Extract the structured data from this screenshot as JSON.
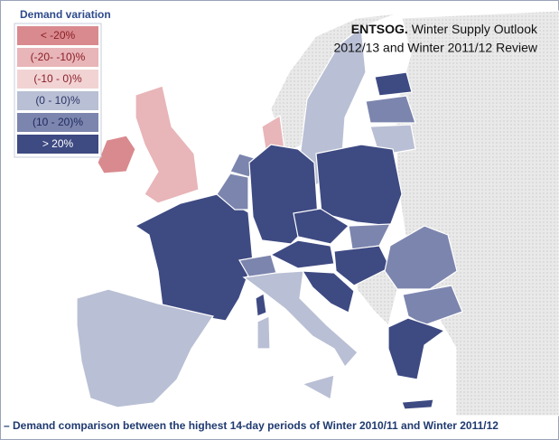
{
  "legend": {
    "title": "Demand variation",
    "items": [
      {
        "label": "< -20%",
        "color": "#d98a8e",
        "text_color": "#8a1f27"
      },
      {
        "label": "(-20- -10)%",
        "color": "#e8b5b8",
        "text_color": "#8a1f27"
      },
      {
        "label": "(-10 - 0)%",
        "color": "#f2d3d4",
        "text_color": "#8a1f27"
      },
      {
        "label": "(0 - 10)%",
        "color": "#b9bfd4",
        "text_color": "#2a3566"
      },
      {
        "label": "(10 - 20)%",
        "color": "#7c85ae",
        "text_color": "#1e2a5c"
      },
      {
        "label": "> 20%",
        "color": "#3e4a82",
        "text_color": "#ffffff"
      }
    ]
  },
  "source": {
    "bold": "ENTSOG.",
    "line1": "Winter Supply Outlook",
    "line2": "2012/13 and Winter 2011/12 Review"
  },
  "caption": "– Demand comparison between the highest 14-day periods of Winter 2010/11 and Winter 2011/12"
}
